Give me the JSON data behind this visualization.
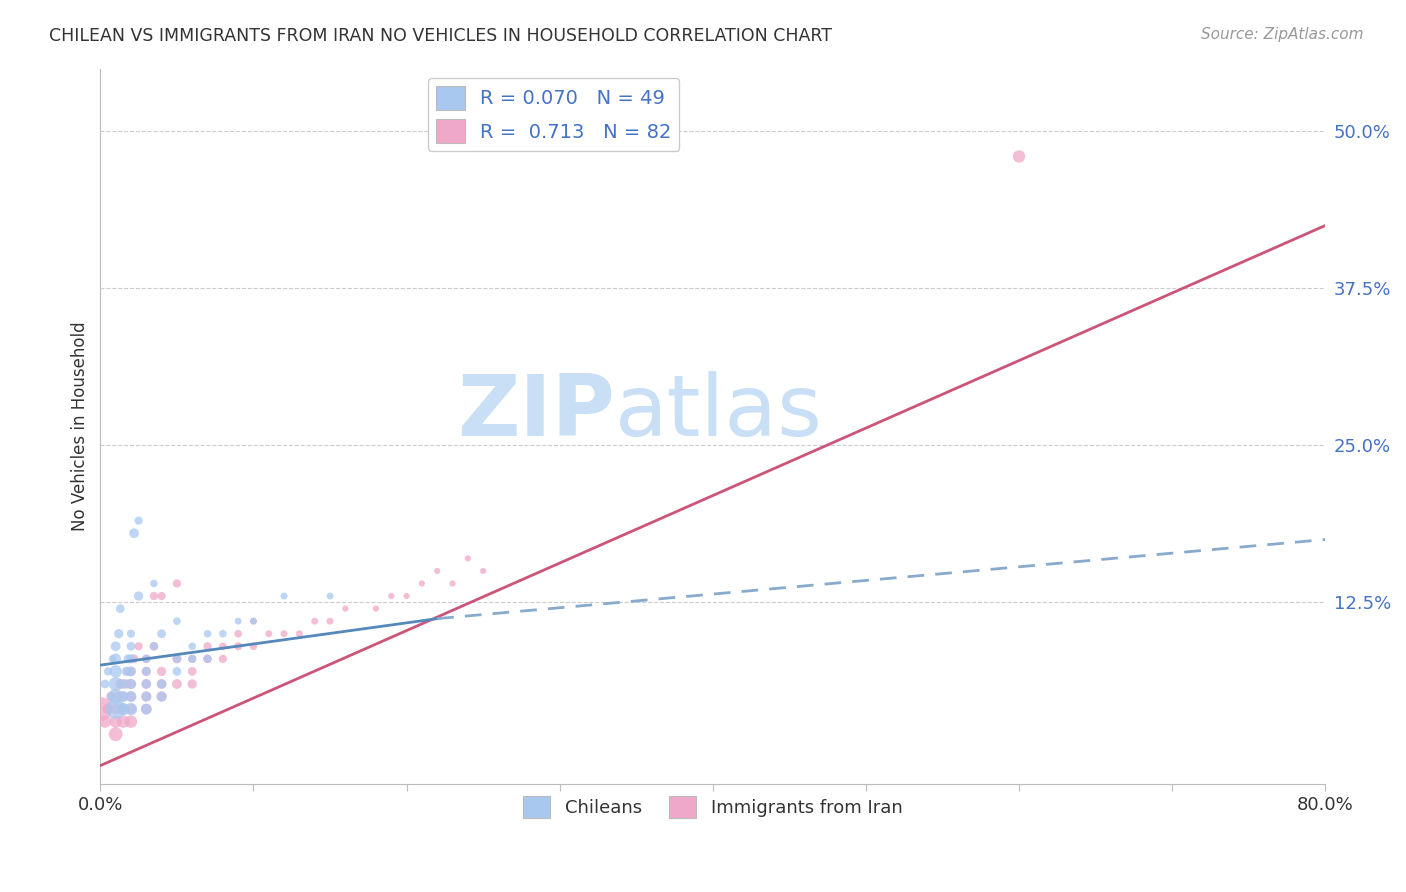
{
  "title": "CHILEAN VS IMMIGRANTS FROM IRAN NO VEHICLES IN HOUSEHOLD CORRELATION CHART",
  "source": "Source: ZipAtlas.com",
  "ylabel": "No Vehicles in Household",
  "xlabel": "",
  "xlim": [
    0.0,
    0.8
  ],
  "ylim": [
    -0.02,
    0.55
  ],
  "xticks": [
    0.0,
    0.1,
    0.2,
    0.3,
    0.4,
    0.5,
    0.6,
    0.7,
    0.8
  ],
  "xticklabels": [
    "0.0%",
    "",
    "",
    "",
    "",
    "",
    "",
    "",
    "80.0%"
  ],
  "yticks_right": [
    0.125,
    0.25,
    0.375,
    0.5
  ],
  "ytick_right_labels": [
    "12.5%",
    "25.0%",
    "37.5%",
    "50.0%"
  ],
  "legend_r_chilean": "0.070",
  "legend_n_chilean": "49",
  "legend_r_iran": "0.713",
  "legend_n_iran": "82",
  "chilean_color": "#a8c8f0",
  "iran_color": "#f0a8c8",
  "chilean_solid_color": "#5588bb",
  "chilean_dash_color": "#88aacc",
  "iran_line_color": "#cc5577",
  "watermark_zip": "ZIP",
  "watermark_atlas": "atlas",
  "watermark_color": "#c8dff5",
  "background_color": "#ffffff",
  "chilean_scatter": {
    "x": [
      0.003,
      0.005,
      0.007,
      0.008,
      0.01,
      0.01,
      0.01,
      0.01,
      0.01,
      0.01,
      0.012,
      0.013,
      0.015,
      0.015,
      0.015,
      0.017,
      0.018,
      0.02,
      0.02,
      0.02,
      0.02,
      0.02,
      0.02,
      0.02,
      0.022,
      0.025,
      0.025,
      0.03,
      0.03,
      0.03,
      0.03,
      0.03,
      0.035,
      0.035,
      0.04,
      0.04,
      0.04,
      0.05,
      0.05,
      0.05,
      0.06,
      0.06,
      0.07,
      0.07,
      0.08,
      0.09,
      0.1,
      0.12,
      0.15
    ],
    "y": [
      0.06,
      0.07,
      0.05,
      0.08,
      0.04,
      0.05,
      0.06,
      0.07,
      0.08,
      0.09,
      0.1,
      0.12,
      0.04,
      0.05,
      0.06,
      0.07,
      0.08,
      0.04,
      0.05,
      0.06,
      0.07,
      0.08,
      0.09,
      0.1,
      0.18,
      0.13,
      0.19,
      0.04,
      0.05,
      0.06,
      0.07,
      0.08,
      0.09,
      0.14,
      0.05,
      0.06,
      0.1,
      0.07,
      0.08,
      0.11,
      0.08,
      0.09,
      0.08,
      0.1,
      0.1,
      0.11,
      0.11,
      0.13,
      0.13
    ],
    "sizes": [
      40,
      35,
      30,
      30,
      200,
      120,
      100,
      80,
      60,
      50,
      45,
      40,
      80,
      60,
      50,
      45,
      40,
      80,
      60,
      55,
      50,
      45,
      40,
      35,
      50,
      45,
      35,
      60,
      50,
      45,
      40,
      35,
      35,
      30,
      50,
      45,
      40,
      40,
      35,
      30,
      35,
      30,
      35,
      30,
      30,
      25,
      25,
      25,
      25
    ]
  },
  "iran_scatter": {
    "x": [
      0.0,
      0.003,
      0.005,
      0.007,
      0.01,
      0.01,
      0.01,
      0.012,
      0.013,
      0.015,
      0.015,
      0.015,
      0.017,
      0.018,
      0.02,
      0.02,
      0.02,
      0.02,
      0.02,
      0.022,
      0.025,
      0.03,
      0.03,
      0.03,
      0.03,
      0.03,
      0.035,
      0.035,
      0.04,
      0.04,
      0.04,
      0.04,
      0.05,
      0.05,
      0.05,
      0.06,
      0.06,
      0.06,
      0.07,
      0.07,
      0.08,
      0.08,
      0.09,
      0.09,
      0.1,
      0.1,
      0.11,
      0.12,
      0.13,
      0.14,
      0.15,
      0.16,
      0.18,
      0.19,
      0.2,
      0.21,
      0.22,
      0.23,
      0.24,
      0.25,
      0.6
    ],
    "y": [
      0.04,
      0.03,
      0.04,
      0.05,
      0.02,
      0.03,
      0.04,
      0.05,
      0.06,
      0.03,
      0.04,
      0.05,
      0.06,
      0.07,
      0.03,
      0.04,
      0.05,
      0.06,
      0.07,
      0.08,
      0.09,
      0.04,
      0.05,
      0.06,
      0.07,
      0.08,
      0.09,
      0.13,
      0.05,
      0.06,
      0.07,
      0.13,
      0.06,
      0.08,
      0.14,
      0.06,
      0.07,
      0.08,
      0.08,
      0.09,
      0.08,
      0.09,
      0.09,
      0.1,
      0.09,
      0.11,
      0.1,
      0.1,
      0.1,
      0.11,
      0.11,
      0.12,
      0.12,
      0.13,
      0.13,
      0.14,
      0.15,
      0.14,
      0.16,
      0.15,
      0.48
    ],
    "sizes": [
      300,
      80,
      60,
      50,
      100,
      80,
      60,
      55,
      50,
      80,
      60,
      50,
      45,
      40,
      80,
      60,
      55,
      50,
      45,
      40,
      35,
      60,
      55,
      50,
      45,
      40,
      40,
      35,
      55,
      50,
      45,
      35,
      50,
      45,
      35,
      45,
      40,
      35,
      40,
      35,
      35,
      30,
      35,
      30,
      30,
      25,
      25,
      25,
      25,
      25,
      25,
      20,
      20,
      20,
      20,
      20,
      20,
      20,
      20,
      20,
      80
    ]
  },
  "chilean_solid_trendline": {
    "x": [
      0.0,
      0.22
    ],
    "y": [
      0.075,
      0.112
    ]
  },
  "chilean_dash_trendline": {
    "x": [
      0.22,
      0.8
    ],
    "y": [
      0.112,
      0.175
    ]
  },
  "iran_trendline": {
    "x": [
      0.0,
      0.8
    ],
    "y": [
      -0.005,
      0.425
    ]
  }
}
